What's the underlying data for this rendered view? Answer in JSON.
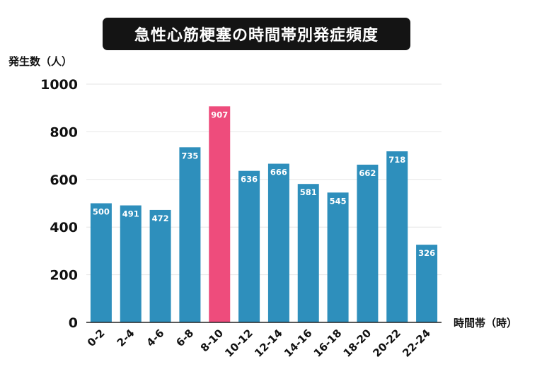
{
  "chart_data": {
    "type": "bar",
    "title": "急性心筋梗塞の時間帯別発症頻度",
    "ylabel": "発生数（人）",
    "xlabel": "時間帯（時）",
    "categories": [
      "0-2",
      "2-4",
      "4-6",
      "6-8",
      "8-10",
      "10-12",
      "12-14",
      "14-16",
      "16-18",
      "18-20",
      "20-22",
      "22-24"
    ],
    "values": [
      500,
      491,
      472,
      735,
      907,
      636,
      666,
      581,
      545,
      662,
      718,
      326
    ],
    "ylim": [
      0,
      1000
    ],
    "yticks": [
      0,
      200,
      400,
      600,
      800,
      1000
    ],
    "grid": true,
    "highlight_category": "8-10",
    "colors": {
      "bar": "#2e8fbc",
      "highlight": "#ee4c7c",
      "value_label": "#ffffff",
      "grid": "#e6e6e6",
      "axis": "#222222"
    }
  }
}
